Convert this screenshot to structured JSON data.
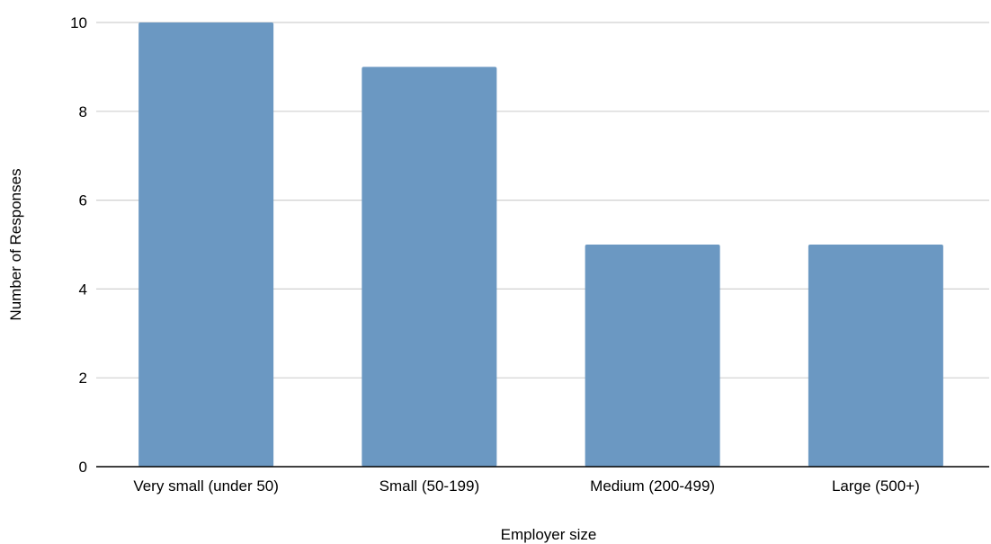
{
  "chart_data": {
    "type": "bar",
    "categories": [
      "Very small (under 50)",
      "Small (50-199)",
      "Medium (200-499)",
      "Large (500+)"
    ],
    "values": [
      10,
      9,
      5,
      5
    ],
    "title": "",
    "xlabel": "Employer size",
    "ylabel": "Number of Responses",
    "ylim": [
      0,
      10
    ],
    "yticks": [
      0,
      2,
      4,
      6,
      8,
      10
    ],
    "grid": true,
    "legend": "none",
    "bar_color": "#6b98c2"
  }
}
